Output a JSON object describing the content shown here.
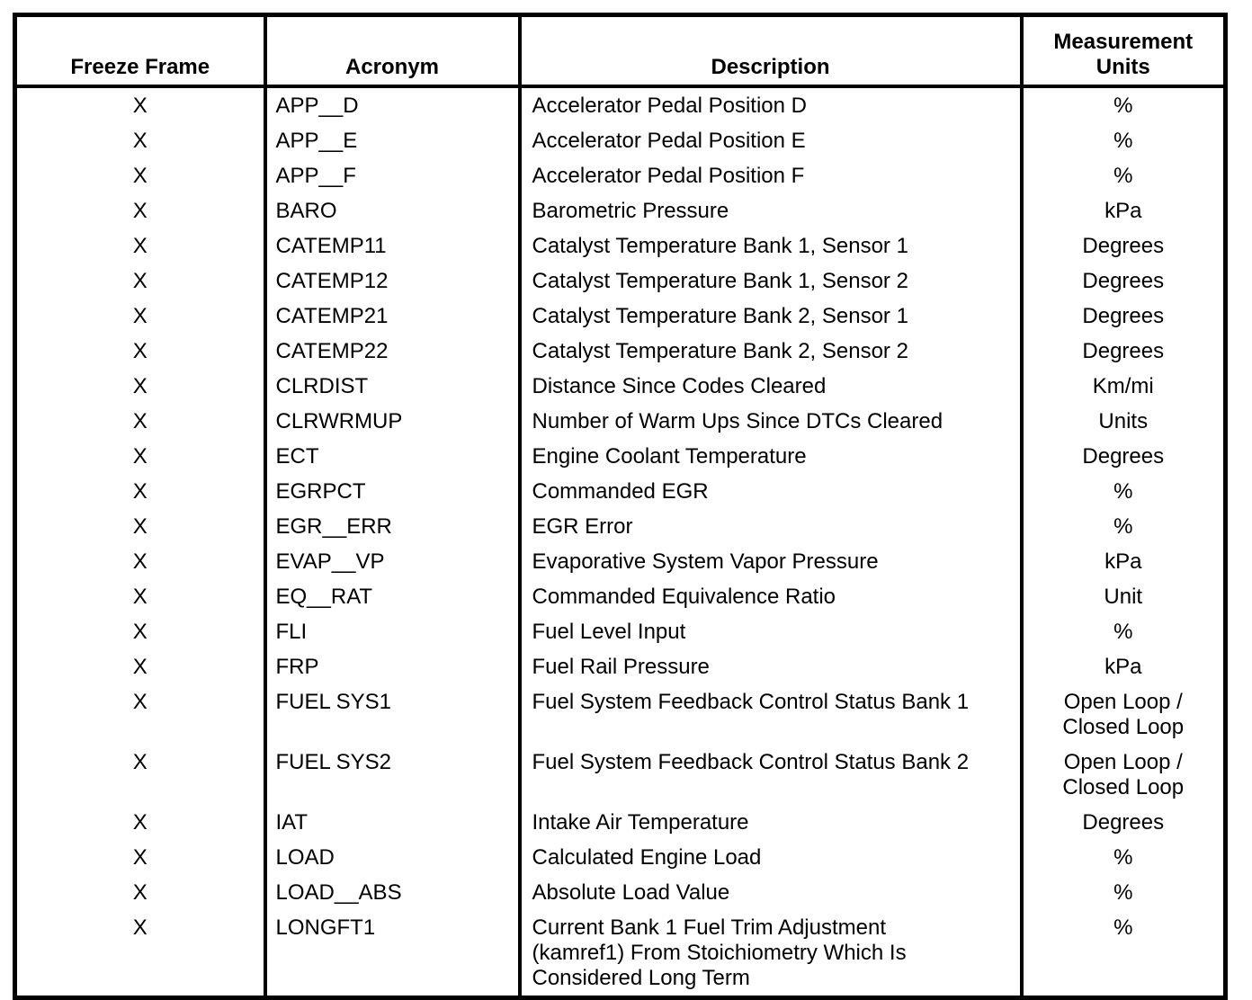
{
  "table": {
    "headers": [
      "Freeze Frame",
      "Acronym",
      "Description",
      "Measurement\nUnits"
    ],
    "rows": [
      {
        "freeze_frame": "X",
        "acronym": "APP__D",
        "description": "Accelerator Pedal Position D",
        "units": "%"
      },
      {
        "freeze_frame": "X",
        "acronym": "APP__E",
        "description": "Accelerator Pedal Position E",
        "units": "%"
      },
      {
        "freeze_frame": "X",
        "acronym": "APP__F",
        "description": "Accelerator Pedal Position F",
        "units": "%"
      },
      {
        "freeze_frame": "X",
        "acronym": "BARO",
        "description": "Barometric Pressure",
        "units": "kPa"
      },
      {
        "freeze_frame": "X",
        "acronym": "CATEMP11",
        "description": "Catalyst Temperature Bank 1, Sensor 1",
        "units": "Degrees"
      },
      {
        "freeze_frame": "X",
        "acronym": "CATEMP12",
        "description": "Catalyst Temperature Bank 1, Sensor 2",
        "units": "Degrees"
      },
      {
        "freeze_frame": "X",
        "acronym": "CATEMP21",
        "description": "Catalyst Temperature Bank 2, Sensor 1",
        "units": "Degrees"
      },
      {
        "freeze_frame": "X",
        "acronym": "CATEMP22",
        "description": "Catalyst Temperature Bank 2, Sensor 2",
        "units": "Degrees"
      },
      {
        "freeze_frame": "X",
        "acronym": "CLRDIST",
        "description": "Distance Since Codes Cleared",
        "units": "Km/mi"
      },
      {
        "freeze_frame": "X",
        "acronym": "CLRWRMUP",
        "description": "Number of Warm Ups Since DTCs Cleared",
        "units": "Units"
      },
      {
        "freeze_frame": "X",
        "acronym": "ECT",
        "description": "Engine Coolant Temperature",
        "units": "Degrees"
      },
      {
        "freeze_frame": "X",
        "acronym": "EGRPCT",
        "description": "Commanded EGR",
        "units": "%"
      },
      {
        "freeze_frame": "X",
        "acronym": "EGR__ERR",
        "description": "EGR Error",
        "units": "%"
      },
      {
        "freeze_frame": "X",
        "acronym": "EVAP__VP",
        "description": "Evaporative System Vapor Pressure",
        "units": "kPa"
      },
      {
        "freeze_frame": "X",
        "acronym": "EQ__RAT",
        "description": "Commanded Equivalence Ratio",
        "units": "Unit"
      },
      {
        "freeze_frame": "X",
        "acronym": "FLI",
        "description": "Fuel Level Input",
        "units": "%"
      },
      {
        "freeze_frame": "X",
        "acronym": "FRP",
        "description": "Fuel Rail Pressure",
        "units": "kPa"
      },
      {
        "freeze_frame": "X",
        "acronym": "FUEL SYS1",
        "description": "Fuel System Feedback Control Status Bank 1",
        "units": "Open Loop /\nClosed Loop"
      },
      {
        "freeze_frame": "X",
        "acronym": "FUEL SYS2",
        "description": "Fuel System Feedback Control Status Bank 2",
        "units": "Open Loop /\nClosed Loop"
      },
      {
        "freeze_frame": "X",
        "acronym": "IAT",
        "description": "Intake Air Temperature",
        "units": "Degrees"
      },
      {
        "freeze_frame": "X",
        "acronym": "LOAD",
        "description": "Calculated Engine Load",
        "units": "%"
      },
      {
        "freeze_frame": "X",
        "acronym": "LOAD__ABS",
        "description": "Absolute Load Value",
        "units": "%"
      },
      {
        "freeze_frame": "X",
        "acronym": "LONGFT1",
        "description": "Current Bank 1 Fuel Trim Adjustment\n(kamref1) From Stoichiometry Which Is\nConsidered Long Term",
        "units": "%"
      }
    ]
  }
}
